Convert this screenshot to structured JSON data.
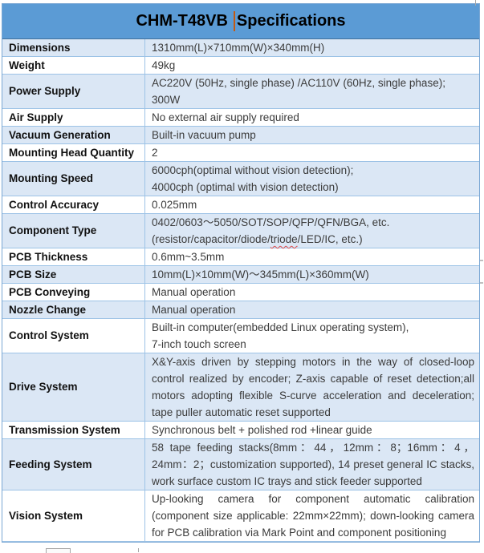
{
  "header": {
    "title_part1": "CHM-T48VB",
    "title_part2": "Specifications"
  },
  "colors": {
    "header_bg": "#5b9bd5",
    "row_shade": "#dbe7f5",
    "border": "#9dc3e6",
    "value_text": "#3b3b3b",
    "cursor": "#c45911",
    "squiggle": "#dd4b4b"
  },
  "rows": [
    {
      "label": "Dimensions",
      "shaded": true,
      "lines": [
        "1310mm(L)×710mm(W)×340mm(H)"
      ]
    },
    {
      "label": "Weight",
      "shaded": false,
      "lines": [
        "49kg"
      ]
    },
    {
      "label": "Power Supply",
      "shaded": true,
      "lines": [
        "AC220V (50Hz, single phase) /AC110V (60Hz, single phase);",
        "300W"
      ]
    },
    {
      "label": "Air Supply",
      "shaded": false,
      "lines": [
        "No external air supply required"
      ]
    },
    {
      "label": "Vacuum Generation",
      "shaded": true,
      "lines": [
        "Built-in vacuum pump"
      ]
    },
    {
      "label": "Mounting Head Quantity",
      "shaded": false,
      "lines": [
        "2"
      ]
    },
    {
      "label": "Mounting Speed",
      "shaded": true,
      "lines": [
        "6000cph(optimal without vision detection);",
        "4000cph (optimal with vision detection)"
      ]
    },
    {
      "label": "Control Accuracy",
      "shaded": false,
      "lines": [
        "0.025mm"
      ]
    },
    {
      "label": "Component Type",
      "shaded": true,
      "lines": [
        "0402/0603～5050/SOT/SOP/QFP/QFN/BGA, etc.",
        "(resistor/capacitor/diode/triode/LED/IC, etc.)"
      ],
      "misspelled_word": "triode"
    },
    {
      "label": "PCB Thickness",
      "shaded": false,
      "lines": [
        "0.6mm~3.5mm"
      ]
    },
    {
      "label": "PCB Size",
      "shaded": true,
      "lines": [
        "10mm(L)×10mm(W)～345mm(L)×360mm(W)"
      ]
    },
    {
      "label": "PCB Conveying",
      "shaded": false,
      "lines": [
        "Manual operation"
      ]
    },
    {
      "label": "Nozzle Change",
      "shaded": true,
      "lines": [
        "Manual operation"
      ]
    },
    {
      "label": "Control System",
      "shaded": false,
      "lines": [
        "Built-in computer(embedded Linux operating system),",
        "7-inch touch screen"
      ]
    },
    {
      "label": "Drive System",
      "shaded": true,
      "justify": true,
      "lines": [
        "X&Y-axis driven by stepping motors in the way of closed-loop control realized by encoder; Z-axis capable of reset detection;all motors adopting flexible S-curve acceleration and deceleration; tape puller automatic reset supported"
      ]
    },
    {
      "label": "Transmission System",
      "shaded": false,
      "lines": [
        "Synchronous belt + polished rod +linear guide"
      ]
    },
    {
      "label": "Feeding System",
      "shaded": true,
      "justify": true,
      "lines": [
        "58 tape feeding stacks(8mm：44，12mm：8；16mm：4，24mm：2；customization supported), 14 preset general IC stacks, work surface custom IC trays and stick feeder supported"
      ]
    },
    {
      "label": "Vision System",
      "shaded": false,
      "justify": true,
      "lines": [
        "Up-looking camera for component automatic calibration (component size applicable: 22mm×22mm); down-looking camera for PCB calibration via Mark Point and component positioning"
      ]
    }
  ]
}
